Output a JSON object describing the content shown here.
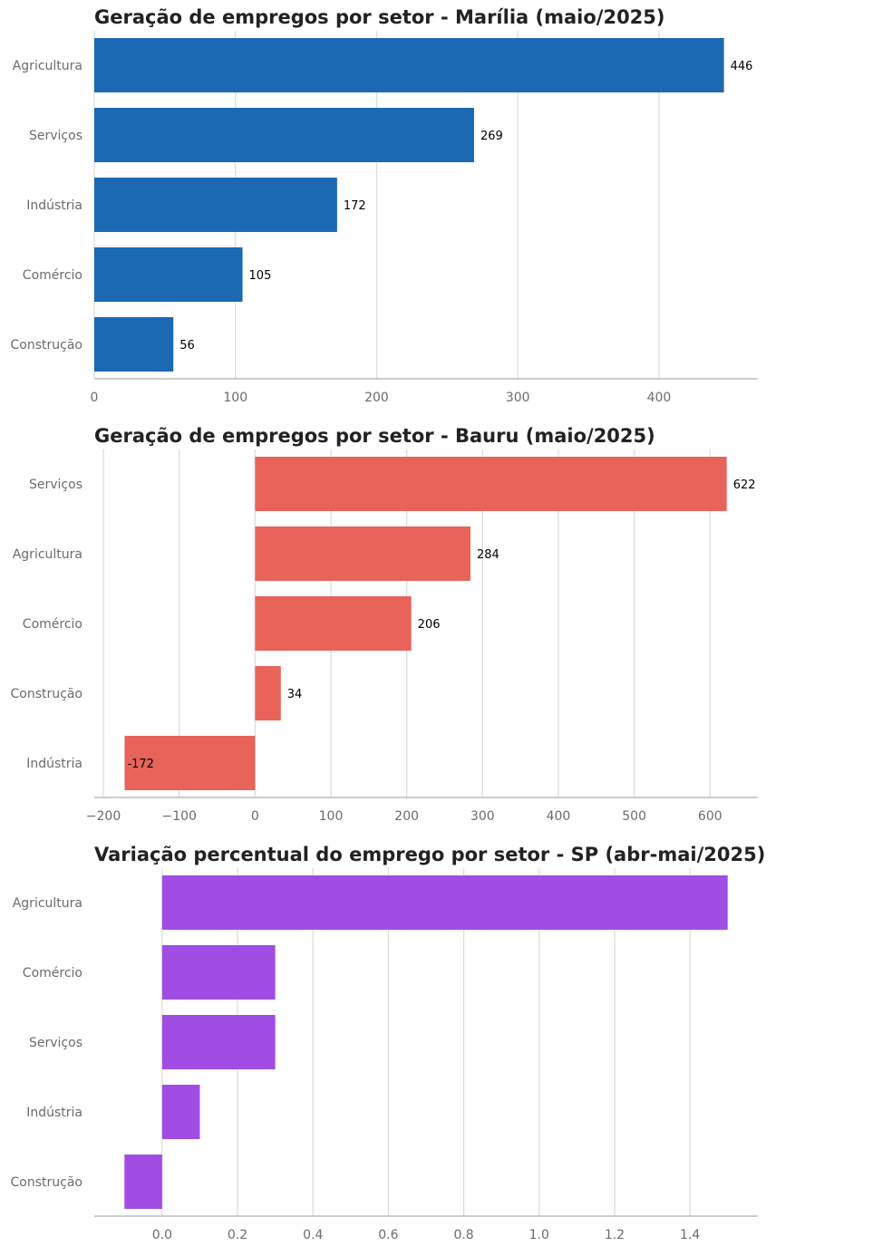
{
  "chart_data": [
    {
      "type": "bar",
      "orientation": "horizontal",
      "title": "Geração de empregos por setor - Marília (maio/2025)",
      "categories": [
        "Agricultura",
        "Serviços",
        "Indústria",
        "Comércio",
        "Construção"
      ],
      "values": [
        446,
        269,
        172,
        105,
        56
      ],
      "value_labels": [
        "446",
        "269",
        "172",
        "105",
        "56"
      ],
      "xlim": [
        0,
        470
      ],
      "xticks": [
        0,
        100,
        200,
        300,
        400
      ],
      "xtick_labels": [
        "0",
        "100",
        "200",
        "300",
        "400"
      ],
      "color": "#1b68b3",
      "grid": true,
      "xlabel": "",
      "ylabel": ""
    },
    {
      "type": "bar",
      "orientation": "horizontal",
      "title": "Geração de empregos por setor - Bauru (maio/2025)",
      "categories": [
        "Serviços",
        "Agricultura",
        "Comércio",
        "Construção",
        "Indústria"
      ],
      "values": [
        622,
        284,
        206,
        34,
        -172
      ],
      "value_labels": [
        "622",
        "284",
        "206",
        "34",
        "-172"
      ],
      "xlim": [
        -212,
        663
      ],
      "xticks": [
        -200,
        -100,
        0,
        100,
        200,
        300,
        400,
        500,
        600
      ],
      "xtick_labels": [
        "−200",
        "−100",
        "0",
        "100",
        "200",
        "300",
        "400",
        "500",
        "600"
      ],
      "color": "#e8635a",
      "grid": true,
      "xlabel": "",
      "ylabel": ""
    },
    {
      "type": "bar",
      "orientation": "horizontal",
      "title": "Variação percentual do emprego por setor - SP (abr-mai/2025)",
      "categories": [
        "Agricultura",
        "Comércio",
        "Serviços",
        "Indústria",
        "Construção"
      ],
      "values": [
        1.5,
        0.3,
        0.3,
        0.1,
        -0.1
      ],
      "value_labels": [],
      "xlim": [
        -0.18,
        1.58
      ],
      "xticks": [
        0.0,
        0.2,
        0.4,
        0.6,
        0.8,
        1.0,
        1.2,
        1.4
      ],
      "xtick_labels": [
        "0.0",
        "0.2",
        "0.4",
        "0.6",
        "0.8",
        "1.0",
        "1.2",
        "1.4"
      ],
      "color": "#a14de3",
      "grid": true,
      "xlabel": "",
      "ylabel": ""
    }
  ]
}
